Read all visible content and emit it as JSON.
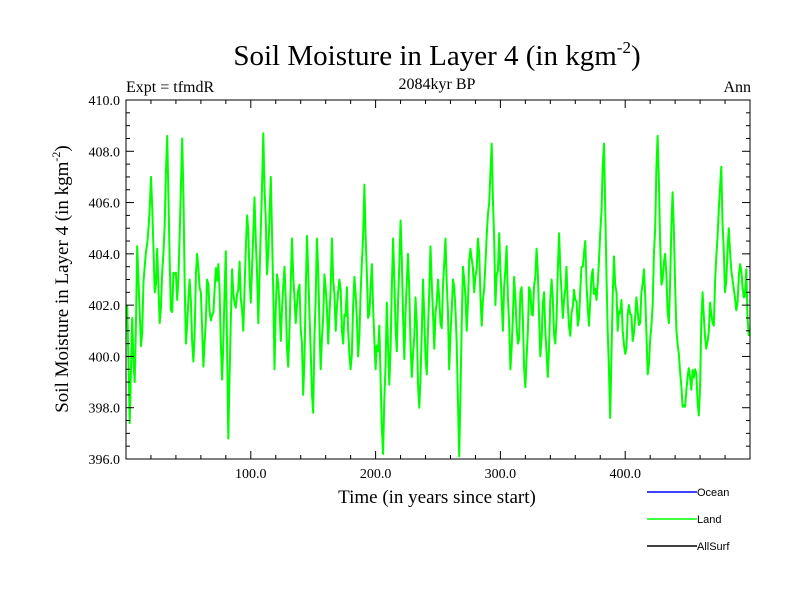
{
  "chart_data": {
    "type": "line",
    "title": "Soil Moisture in Layer 4 (in kgm",
    "title_sup": "-2",
    "title_close": ")",
    "subtitle": "2084kyr BP",
    "left_label": "Expt = tfmdR",
    "right_label": "Ann",
    "xlabel": "Time (in years since start)",
    "ylabel": "Soil Moisture in Layer 4 (in kgm",
    "ylabel_sup": "-2",
    "ylabel_close": ")",
    "xlim": [
      0,
      500
    ],
    "ylim": [
      396,
      410
    ],
    "xticks": [
      100,
      200,
      300,
      400
    ],
    "xtick_labels": [
      "100.0",
      "200.0",
      "300.0",
      "400.0"
    ],
    "yticks": [
      396,
      398,
      400,
      402,
      404,
      406,
      408,
      410
    ],
    "ytick_labels": [
      "396.0",
      "398.0",
      "400.0",
      "402.0",
      "404.0",
      "406.0",
      "408.0",
      "410.0"
    ],
    "legend": [
      {
        "name": "Ocean",
        "color": "#0000ff"
      },
      {
        "name": "Land",
        "color": "#00ff00"
      },
      {
        "name": "AllSurf",
        "color": "#000000"
      }
    ],
    "series": [
      {
        "name": "Land",
        "color": "#00ff00",
        "x_start": 1,
        "x_step": 1,
        "anchors": [
          [
            1,
            402.0
          ],
          [
            3,
            397.4
          ],
          [
            5,
            401.5
          ],
          [
            7,
            399.0
          ],
          [
            9,
            404.3
          ],
          [
            12,
            400.4
          ],
          [
            15,
            403.5
          ],
          [
            18,
            405.0
          ],
          [
            20,
            407.0
          ],
          [
            23,
            402.5
          ],
          [
            25,
            404.2
          ],
          [
            27,
            401.3
          ],
          [
            30,
            404.0
          ],
          [
            33,
            408.6
          ],
          [
            36,
            401.8
          ],
          [
            39,
            403.2
          ],
          [
            41,
            402.2
          ],
          [
            43,
            404.8
          ],
          [
            45,
            408.5
          ],
          [
            48,
            400.5
          ],
          [
            51,
            403.0
          ],
          [
            54,
            399.8
          ],
          [
            57,
            404.0
          ],
          [
            60,
            402.5
          ],
          [
            62,
            399.6
          ],
          [
            65,
            403.0
          ],
          [
            68,
            401.4
          ],
          [
            71,
            402.6
          ],
          [
            74,
            403.6
          ],
          [
            77,
            399.1
          ],
          [
            80,
            404.1
          ],
          [
            82,
            396.8
          ],
          [
            85,
            403.4
          ],
          [
            88,
            401.9
          ],
          [
            91,
            403.7
          ],
          [
            94,
            401.0
          ],
          [
            97,
            405.5
          ],
          [
            100,
            402.1
          ],
          [
            103,
            406.2
          ],
          [
            106,
            401.3
          ],
          [
            110,
            408.7
          ],
          [
            113,
            403.2
          ],
          [
            116,
            407.0
          ],
          [
            119,
            399.5
          ],
          [
            121,
            403.2
          ],
          [
            124,
            400.6
          ],
          [
            127,
            403.5
          ],
          [
            130,
            399.6
          ],
          [
            133,
            404.6
          ],
          [
            136,
            401.3
          ],
          [
            139,
            402.8
          ],
          [
            142,
            398.5
          ],
          [
            145,
            404.7
          ],
          [
            148,
            400.2
          ],
          [
            150,
            397.8
          ],
          [
            153,
            404.6
          ],
          [
            156,
            399.5
          ],
          [
            159,
            403.2
          ],
          [
            162,
            400.5
          ],
          [
            165,
            404.6
          ],
          [
            168,
            401.0
          ],
          [
            171,
            403.0
          ],
          [
            174,
            400.5
          ],
          [
            177,
            402.7
          ],
          [
            180,
            399.5
          ],
          [
            183,
            403.1
          ],
          [
            186,
            400.0
          ],
          [
            189,
            403.7
          ],
          [
            191,
            406.7
          ],
          [
            194,
            401.5
          ],
          [
            197,
            403.6
          ],
          [
            200,
            399.5
          ],
          [
            203,
            401.2
          ],
          [
            206,
            396.2
          ],
          [
            209,
            402.1
          ],
          [
            211,
            398.9
          ],
          [
            214,
            404.6
          ],
          [
            217,
            400.2
          ],
          [
            220,
            405.3
          ],
          [
            223,
            399.9
          ],
          [
            226,
            404.0
          ],
          [
            229,
            399.2
          ],
          [
            232,
            402.3
          ],
          [
            235,
            398.0
          ],
          [
            238,
            403.0
          ],
          [
            241,
            399.3
          ],
          [
            244,
            404.3
          ],
          [
            247,
            400.3
          ],
          [
            250,
            403.0
          ],
          [
            253,
            401.1
          ],
          [
            256,
            404.6
          ],
          [
            259,
            399.5
          ],
          [
            262,
            403.0
          ],
          [
            265,
            400.5
          ],
          [
            267,
            396.1
          ],
          [
            270,
            403.5
          ],
          [
            273,
            401.0
          ],
          [
            276,
            404.2
          ],
          [
            279,
            402.5
          ],
          [
            282,
            404.6
          ],
          [
            285,
            401.2
          ],
          [
            288,
            403.6
          ],
          [
            291,
            406.0
          ],
          [
            293,
            408.3
          ],
          [
            296,
            402.0
          ],
          [
            299,
            404.8
          ],
          [
            302,
            401.0
          ],
          [
            305,
            404.3
          ],
          [
            308,
            399.5
          ],
          [
            311,
            403.1
          ],
          [
            314,
            400.5
          ],
          [
            317,
            402.7
          ],
          [
            320,
            398.8
          ],
          [
            323,
            402.7
          ],
          [
            326,
            401.6
          ],
          [
            329,
            404.2
          ],
          [
            332,
            400.0
          ],
          [
            335,
            402.5
          ],
          [
            338,
            399.2
          ],
          [
            341,
            403.0
          ],
          [
            344,
            400.5
          ],
          [
            347,
            404.8
          ],
          [
            350,
            401.5
          ],
          [
            353,
            403.5
          ],
          [
            356,
            400.8
          ],
          [
            359,
            402.6
          ],
          [
            362,
            401.2
          ],
          [
            365,
            403.5
          ],
          [
            368,
            404.5
          ],
          [
            371,
            401.2
          ],
          [
            374,
            403.4
          ],
          [
            377,
            402.2
          ],
          [
            380,
            404.8
          ],
          [
            383,
            408.3
          ],
          [
            386,
            401.0
          ],
          [
            388,
            397.6
          ],
          [
            391,
            403.9
          ],
          [
            394,
            401.0
          ],
          [
            397,
            402.2
          ],
          [
            400,
            400.1
          ],
          [
            403,
            402.0
          ],
          [
            406,
            400.6
          ],
          [
            409,
            402.3
          ],
          [
            412,
            401.3
          ],
          [
            415,
            403.4
          ],
          [
            418,
            399.3
          ],
          [
            421,
            401.2
          ],
          [
            424,
            405.0
          ],
          [
            426,
            408.6
          ],
          [
            429,
            402.8
          ],
          [
            432,
            404.0
          ],
          [
            435,
            401.3
          ],
          [
            438,
            406.4
          ],
          [
            441,
            401.0
          ],
          [
            444,
            399.4
          ],
          [
            447,
            398.1
          ],
          [
            450,
            399.2
          ],
          [
            453,
            398.7
          ],
          [
            456,
            399.5
          ],
          [
            459,
            397.7
          ],
          [
            462,
            402.5
          ],
          [
            465,
            400.3
          ],
          [
            468,
            402.1
          ],
          [
            471,
            401.2
          ],
          [
            474,
            404.7
          ],
          [
            477,
            407.4
          ],
          [
            480,
            402.5
          ],
          [
            483,
            405.0
          ],
          [
            486,
            403.0
          ],
          [
            489,
            401.8
          ],
          [
            492,
            403.6
          ],
          [
            495,
            402.3
          ],
          [
            497,
            403.4
          ],
          [
            499,
            400.8
          ]
        ]
      }
    ]
  }
}
